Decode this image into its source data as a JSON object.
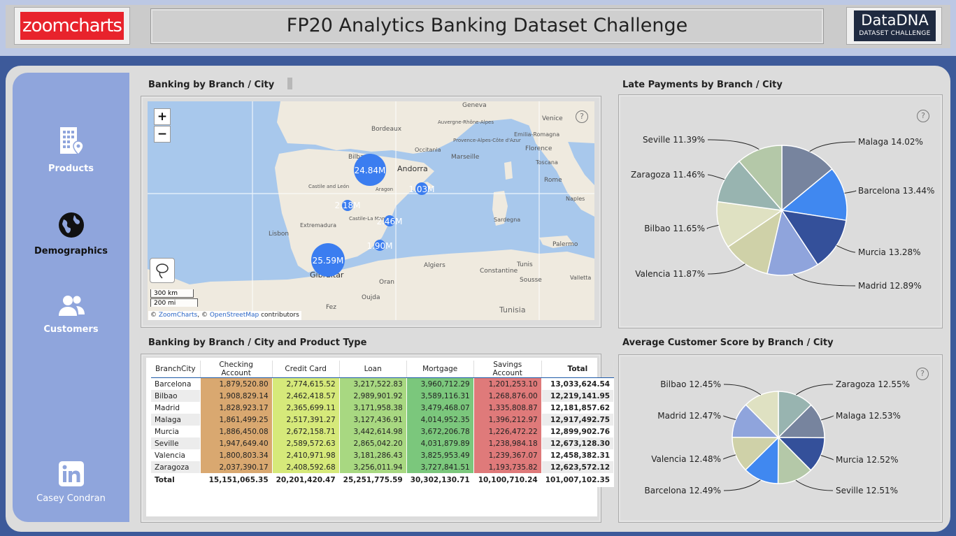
{
  "header": {
    "left_logo": "zoomcharts",
    "title": "FP20 Analytics Banking Dataset Challenge",
    "right_logo_line1": "DataDNA",
    "right_logo_line2": "DATASET CHALLENGE"
  },
  "sidebar": {
    "items": [
      {
        "label": "Products",
        "icon": "building-location-icon"
      },
      {
        "label": "Demographics",
        "icon": "globe-icon"
      },
      {
        "label": "Customers",
        "icon": "users-icon"
      }
    ],
    "profile": {
      "label": "Casey Condran",
      "icon": "linkedin-icon"
    }
  },
  "map_panel": {
    "title": "Banking by Branch / City",
    "zoom_in": "+",
    "zoom_out": "−",
    "scale_km": "300 km",
    "scale_mi": "200 mi",
    "attribution_prefix": "© ",
    "attribution_zc": "ZoomCharts",
    "attribution_mid": ", © ",
    "attribution_osm": "OpenStreetMap",
    "attribution_suffix": " contributors",
    "place_labels": [
      "Geneva",
      "Auvergne-Rhône-Alpes",
      "Venice",
      "Bordeaux",
      "Provence-Alpes-Côte d'Azur",
      "Emilia-Romagna",
      "Marseille",
      "Occitania",
      "Florence",
      "Toscana",
      "Bilbao",
      "Andorra",
      "Rome",
      "Castile and León",
      "Aragon",
      "Naples",
      "Lisbon",
      "Extremadura",
      "Castile-La Mancha",
      "Sardegna",
      "Palermo",
      "Algiers",
      "Constantine",
      "Tunis",
      "Gibraltar",
      "Oran",
      "Sousse",
      "Fez",
      "Oujda",
      "Tunisia",
      "Valletta"
    ],
    "bubbles": [
      {
        "label": "24.84M"
      },
      {
        "label": "1.03M"
      },
      {
        "label": "2.18M"
      },
      {
        "label": "2.46M"
      },
      {
        "label": "1.90M"
      },
      {
        "label": "25.59M"
      }
    ]
  },
  "late_panel": {
    "title": "Late Payments by Branch / City",
    "help": "?"
  },
  "table_panel": {
    "title": "Banking by Branch / City and Product Type",
    "headers": [
      "BranchCity",
      "Checking Account",
      "Credit Card",
      "Loan",
      "Mortgage",
      "Savings Account",
      "Total"
    ],
    "rows": [
      [
        "Barcelona",
        "1,879,520.80",
        "2,774,615.52",
        "3,217,522.83",
        "3,960,712.29",
        "1,201,253.10",
        "13,033,624.54"
      ],
      [
        "Bilbao",
        "1,908,829.14",
        "2,462,418.57",
        "2,989,901.92",
        "3,589,116.31",
        "1,268,876.00",
        "12,219,141.95"
      ],
      [
        "Madrid",
        "1,828,923.17",
        "2,365,699.11",
        "3,171,958.38",
        "3,479,468.07",
        "1,335,808.87",
        "12,181,857.62"
      ],
      [
        "Malaga",
        "1,861,499.25",
        "2,517,391.27",
        "3,127,436.91",
        "4,014,952.35",
        "1,396,212.97",
        "12,917,492.75"
      ],
      [
        "Murcia",
        "1,886,450.08",
        "2,672,158.71",
        "3,442,614.98",
        "3,672,206.78",
        "1,226,472.22",
        "12,899,902.76"
      ],
      [
        "Seville",
        "1,947,649.40",
        "2,589,572.63",
        "2,865,042.20",
        "4,031,879.89",
        "1,238,984.18",
        "12,673,128.30"
      ],
      [
        "Valencia",
        "1,800,803.34",
        "2,410,971.98",
        "3,181,286.43",
        "3,825,953.49",
        "1,239,367.07",
        "12,458,382.31"
      ],
      [
        "Zaragoza",
        "2,037,390.17",
        "2,408,592.68",
        "3,256,011.94",
        "3,727,841.51",
        "1,193,735.82",
        "12,623,572.12"
      ]
    ],
    "totals": [
      "Total",
      "15,151,065.35",
      "20,201,420.47",
      "25,251,775.59",
      "30,302,130.71",
      "10,100,710.24",
      "101,007,102.35"
    ],
    "column_colors": [
      "#d9a870",
      "#d6e97a",
      "#a8d881",
      "#7bc77c",
      "#df7a7a"
    ]
  },
  "score_panel": {
    "title": "Average Customer Score by Branch / City",
    "help": "?"
  },
  "chart_data": [
    {
      "type": "pie",
      "title": "Late Payments by Branch / City",
      "categories": [
        "Malaga",
        "Barcelona",
        "Murcia",
        "Madrid",
        "Valencia",
        "Bilbao",
        "Zaragoza",
        "Seville"
      ],
      "values": [
        14.02,
        13.44,
        13.28,
        12.89,
        11.87,
        11.65,
        11.46,
        11.39
      ],
      "labels": [
        "Malaga 14.02%",
        "Barcelona 13.44%",
        "Murcia 13.28%",
        "Madrid 12.89%",
        "Valencia 11.87%",
        "Bilbao 11.65%",
        "Zaragoza 11.46%",
        "Seville 11.39%"
      ],
      "colors": [
        "#77849e",
        "#4088f0",
        "#34509a",
        "#8fa4dc",
        "#cfd1a8",
        "#dfe1c2",
        "#98b4b0",
        "#b4c8a8"
      ]
    },
    {
      "type": "pie",
      "title": "Average Customer Score by Branch / City",
      "categories": [
        "Zaragoza",
        "Malaga",
        "Murcia",
        "Seville",
        "Barcelona",
        "Valencia",
        "Madrid",
        "Bilbao"
      ],
      "values": [
        12.55,
        12.53,
        12.52,
        12.51,
        12.49,
        12.48,
        12.47,
        12.45
      ],
      "labels": [
        "Zaragoza 12.55%",
        "Malaga 12.53%",
        "Murcia 12.52%",
        "Seville 12.51%",
        "Barcelona 12.49%",
        "Valencia 12.48%",
        "Madrid 12.47%",
        "Bilbao 12.45%"
      ],
      "colors": [
        "#98b4b0",
        "#77849e",
        "#34509a",
        "#b4c8a8",
        "#4088f0",
        "#cfd1a8",
        "#8fa4dc",
        "#dfe1c2"
      ]
    }
  ]
}
